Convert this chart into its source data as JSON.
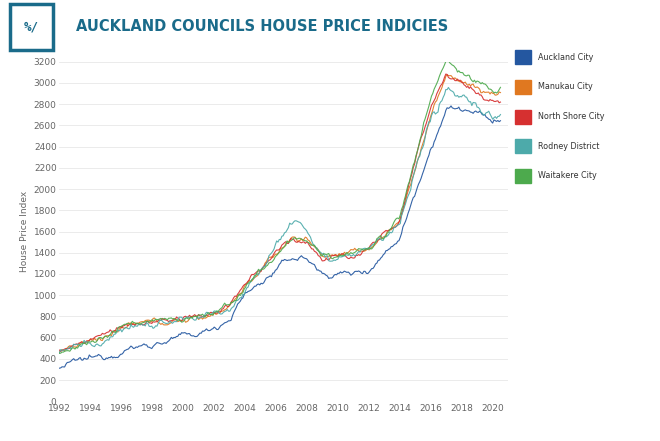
{
  "title": "AUCKLAND COUNCILS HOUSE PRICE INDICIES",
  "ylabel": "House Price Index",
  "background_color": "#ffffff",
  "plot_bg_color": "#ffffff",
  "grid_color": "#e8e8e8",
  "title_color": "#1a6b8a",
  "series": {
    "Auckland City": {
      "color": "#2457a0"
    },
    "Manukau City": {
      "color": "#e07820"
    },
    "North Shore City": {
      "color": "#d63030"
    },
    "Rodney District": {
      "color": "#4daaaa"
    },
    "Waitakere City": {
      "color": "#4daa4d"
    }
  },
  "xmin": 1992,
  "xmax": 2021,
  "ymin": 0,
  "ymax": 3200,
  "yticks": [
    0,
    200,
    400,
    600,
    800,
    1000,
    1200,
    1400,
    1600,
    1800,
    2000,
    2200,
    2400,
    2600,
    2800,
    3000,
    3200
  ]
}
